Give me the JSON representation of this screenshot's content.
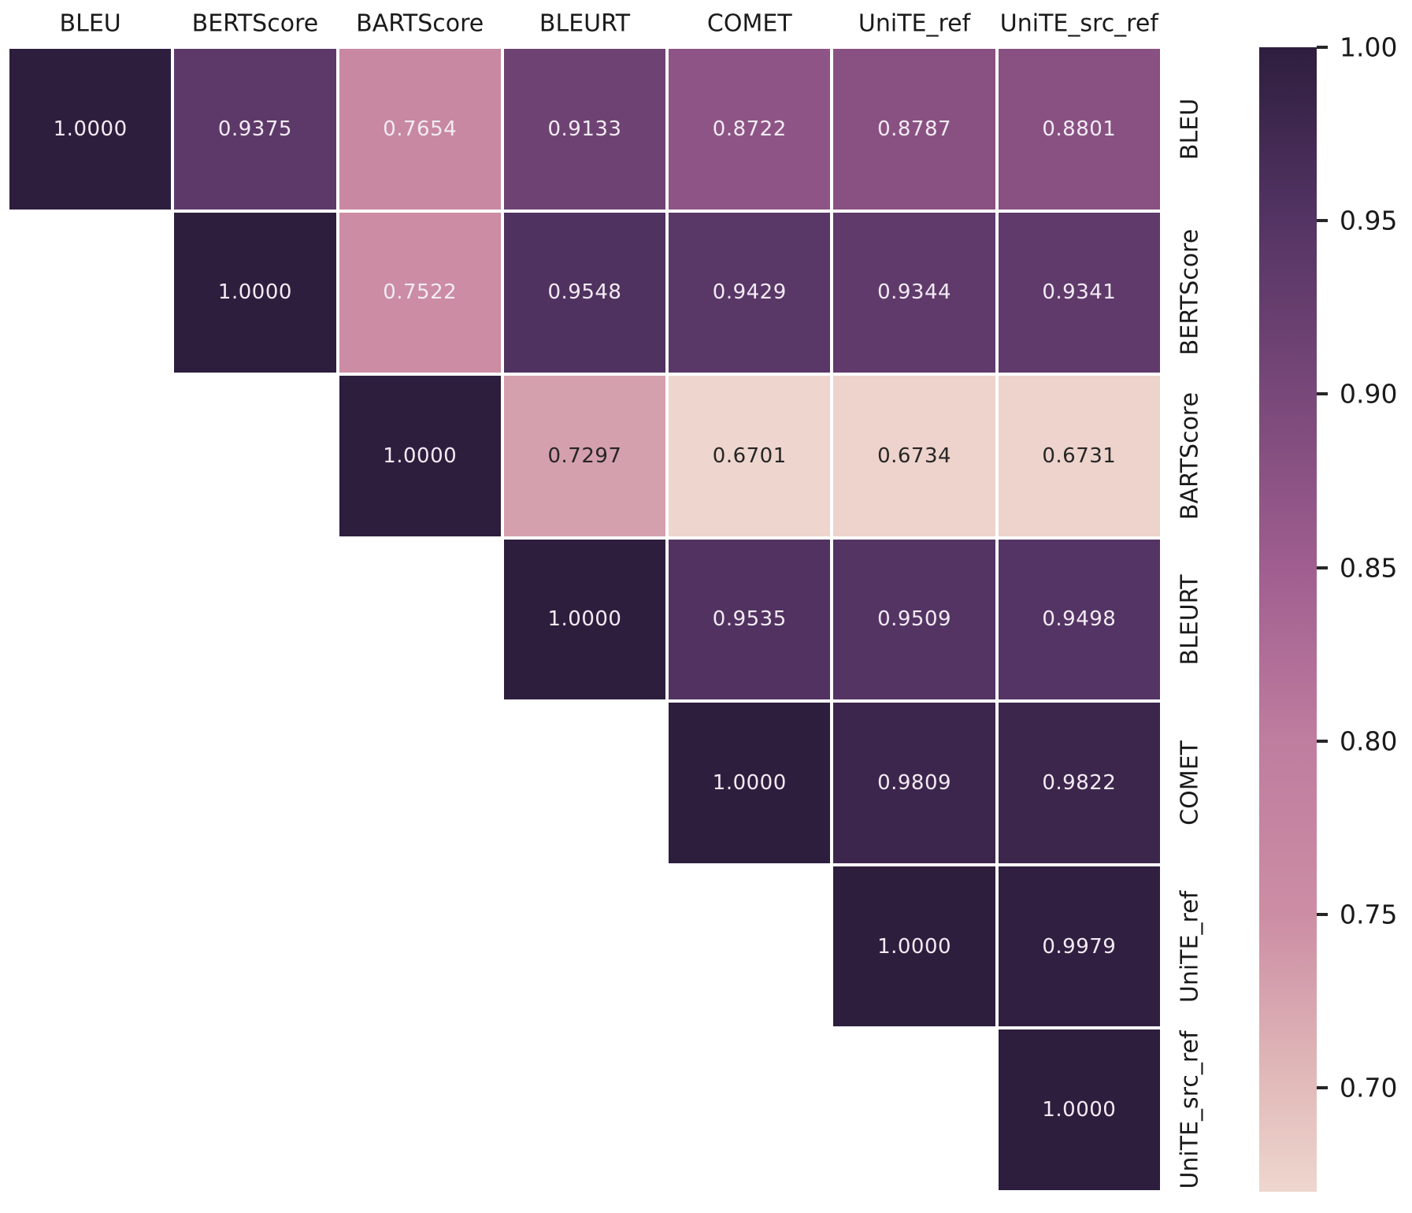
{
  "chart_data": {
    "type": "heatmap",
    "title": "",
    "triangle": "upper",
    "labels": [
      "BLEU",
      "BERTScore",
      "BARTScore",
      "BLEURT",
      "COMET",
      "UniTE_ref",
      "UniTE_src_ref"
    ],
    "matrix": [
      [
        1.0,
        0.9375,
        0.7654,
        0.9133,
        0.8722,
        0.8787,
        0.8801
      ],
      [
        null,
        1.0,
        0.7522,
        0.9548,
        0.9429,
        0.9344,
        0.9341
      ],
      [
        null,
        null,
        1.0,
        0.7297,
        0.6701,
        0.6734,
        0.6731
      ],
      [
        null,
        null,
        null,
        1.0,
        0.9535,
        0.9509,
        0.9498
      ],
      [
        null,
        null,
        null,
        null,
        1.0,
        0.9809,
        0.9822
      ],
      [
        null,
        null,
        null,
        null,
        null,
        1.0,
        0.9979
      ],
      [
        null,
        null,
        null,
        null,
        null,
        null,
        1.0
      ]
    ],
    "value_decimals": 4,
    "vmin": 0.6701,
    "vmax": 1.0,
    "colorbar_ticks": [
      {
        "value": 1.0,
        "label": "1.00"
      },
      {
        "value": 0.95,
        "label": "0.95"
      },
      {
        "value": 0.9,
        "label": "0.90"
      },
      {
        "value": 0.85,
        "label": "0.85"
      },
      {
        "value": 0.8,
        "label": "0.80"
      },
      {
        "value": 0.75,
        "label": "0.75"
      },
      {
        "value": 0.7,
        "label": "0.70"
      }
    ],
    "colormap_anchors": [
      {
        "value": 1.0,
        "color": "#2e1e3e"
      },
      {
        "value": 0.95,
        "color": "#543464"
      },
      {
        "value": 0.9,
        "color": "#784879"
      },
      {
        "value": 0.85,
        "color": "#9f5e8f"
      },
      {
        "value": 0.8,
        "color": "#bf7d9f"
      },
      {
        "value": 0.75,
        "color": "#cc8da4"
      },
      {
        "value": 0.7,
        "color": "#e2bcba"
      },
      {
        "value": 0.6701,
        "color": "#eed6ce"
      }
    ],
    "colors": {
      "background": "#ffffff",
      "grid": "#ffffff",
      "tick_label": "#1a1a1a",
      "annotation_dark": "#262626",
      "annotation_light": "#f2ebf3"
    },
    "legend_position": "right-colorbar",
    "grid": false
  }
}
